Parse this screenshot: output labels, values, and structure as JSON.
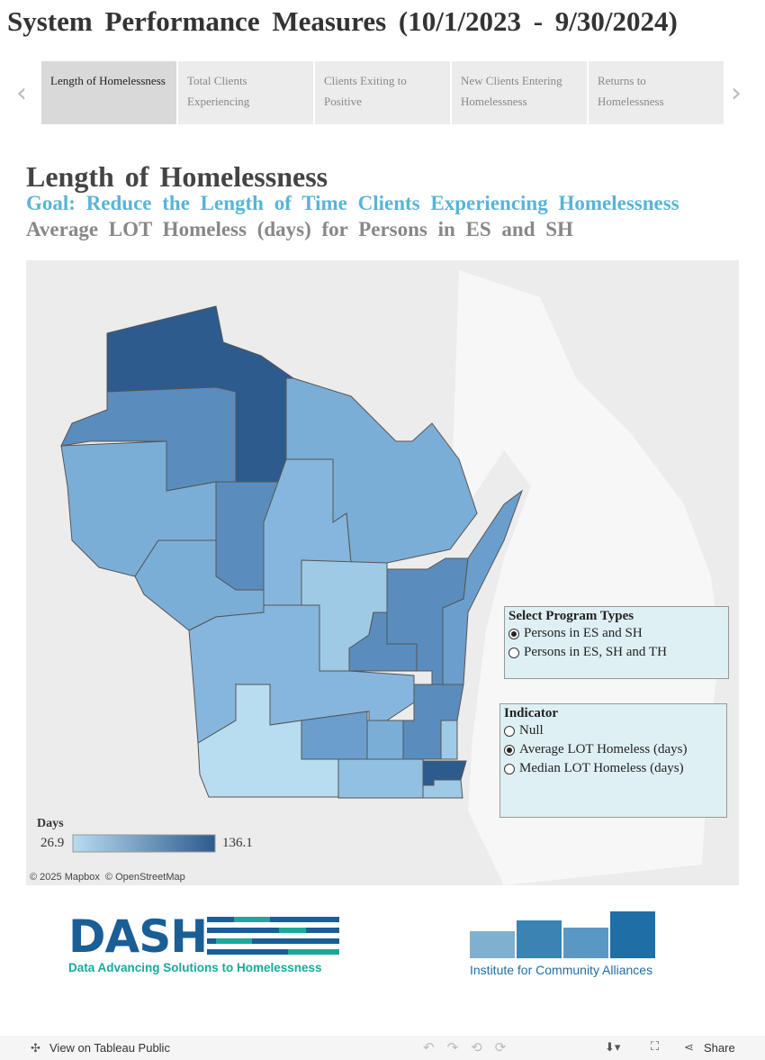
{
  "header": {
    "title": "System Performance Measures (10/1/2023 - 9/30/2024)"
  },
  "tabs": {
    "items": [
      "Length of Homelessness",
      "Total Clients Experiencing",
      "Clients Exiting to Positive",
      "New Clients Entering Homelessness",
      "Returns to Homelessness"
    ],
    "selected": 0
  },
  "section": {
    "title": "Length of Homelessness",
    "goal": "Goal: Reduce the Length of Time Clients Experiencing Homelessness",
    "subtitle": "Average LOT Homeless (days) for Persons in ES and SH"
  },
  "map": {
    "legend": {
      "title": "Days",
      "min": "26.9",
      "max": "136.1"
    },
    "attribution": "© 2025 Mapbox  © OpenStreetMap"
  },
  "program_types": {
    "title": "Select Program Types",
    "options": [
      "Persons in ES and SH",
      "Persons in ES, SH and TH"
    ],
    "selected": 0
  },
  "indicator": {
    "title": "Indicator",
    "options": [
      "Null",
      "Average LOT Homeless (days)",
      "Median LOT Homeless (days)"
    ],
    "selected": 1
  },
  "logos": {
    "dash_name": "DASH",
    "dash_tagline": "Data Advancing Solutions to Homelessness",
    "ica_name": "Institute for Community Alliances"
  },
  "toolbar": {
    "view": "View on Tableau Public",
    "share": "Share"
  }
}
